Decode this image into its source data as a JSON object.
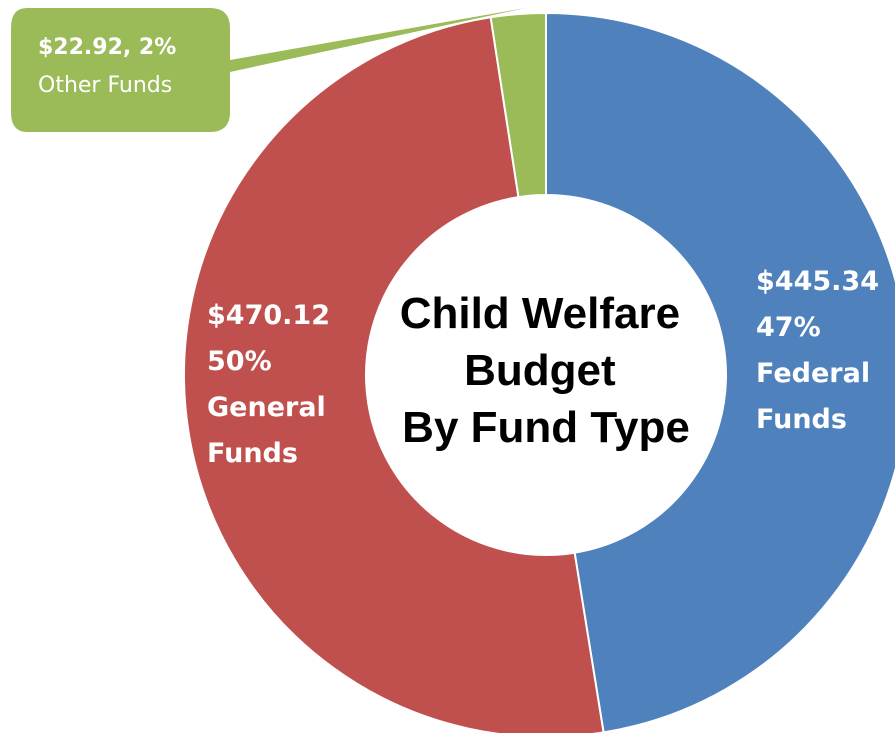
{
  "chart_data": {
    "type": "pie",
    "title": [
      "Child Welfare",
      "Budget",
      "By Fund Type"
    ],
    "slices": [
      {
        "name": "Federal Funds",
        "value": 445.34,
        "percent": "47%",
        "color": "#4F81BD",
        "label_lines": [
          "$445.34",
          "47%",
          "Federal",
          "Funds"
        ]
      },
      {
        "name": "General Funds",
        "value": 470.12,
        "percent": "50%",
        "color": "#C0504D",
        "label_lines": [
          "$470.12",
          "50%",
          "General",
          "Funds"
        ]
      },
      {
        "name": "Other Funds",
        "value": 22.92,
        "percent": "2%",
        "color": "#9BBB59",
        "label_lines": [
          "$22.92, 2%",
          "Other Funds"
        ]
      }
    ],
    "start_angle_deg": 0,
    "direction": "clockwise",
    "donut": true,
    "legend": "none"
  }
}
